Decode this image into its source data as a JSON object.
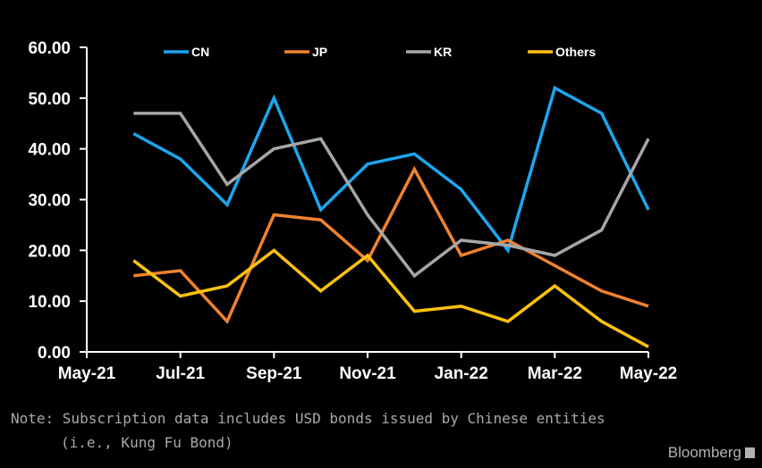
{
  "chart_data": {
    "type": "line",
    "x": [
      "2021-06",
      "2021-07",
      "2021-08",
      "2021-09",
      "2021-10",
      "2021-11",
      "2021-12",
      "2022-01",
      "2022-02",
      "2022-03",
      "2022-04",
      "2022-05"
    ],
    "x_ticks": [
      "May-21",
      "Jul-21",
      "Sep-21",
      "Nov-21",
      "Jan-22",
      "Mar-22",
      "May-22"
    ],
    "y_ticks": [
      "0.00",
      "10.00",
      "20.00",
      "30.00",
      "40.00",
      "50.00",
      "60.00"
    ],
    "ylim": [
      0,
      60
    ],
    "x_range": [
      "2021-05",
      "2022-05"
    ],
    "grid": false,
    "legend_position": "top",
    "series": [
      {
        "name": "CN",
        "color": "#1BA7EF",
        "values": [
          43,
          38,
          29,
          50,
          28,
          37,
          39,
          32,
          20,
          52,
          47,
          28
        ]
      },
      {
        "name": "JP",
        "color": "#F0822F",
        "values": [
          15,
          16,
          6,
          27,
          26,
          18,
          36,
          19,
          22,
          17,
          12,
          9
        ]
      },
      {
        "name": "KR",
        "color": "#A6A6A6",
        "values": [
          47,
          47,
          33,
          40,
          42,
          27,
          15,
          22,
          21,
          19,
          24,
          42
        ]
      },
      {
        "name": "Others",
        "color": "#FFC20E",
        "values": [
          18,
          11,
          13,
          20,
          12,
          19,
          8,
          9,
          6,
          13,
          6,
          1
        ]
      }
    ]
  },
  "note": {
    "line1": "Note: Subscription data includes USD bonds issued by Chinese entities",
    "line2": "(i.e., Kung Fu Bond)"
  },
  "brand": "Bloomberg"
}
